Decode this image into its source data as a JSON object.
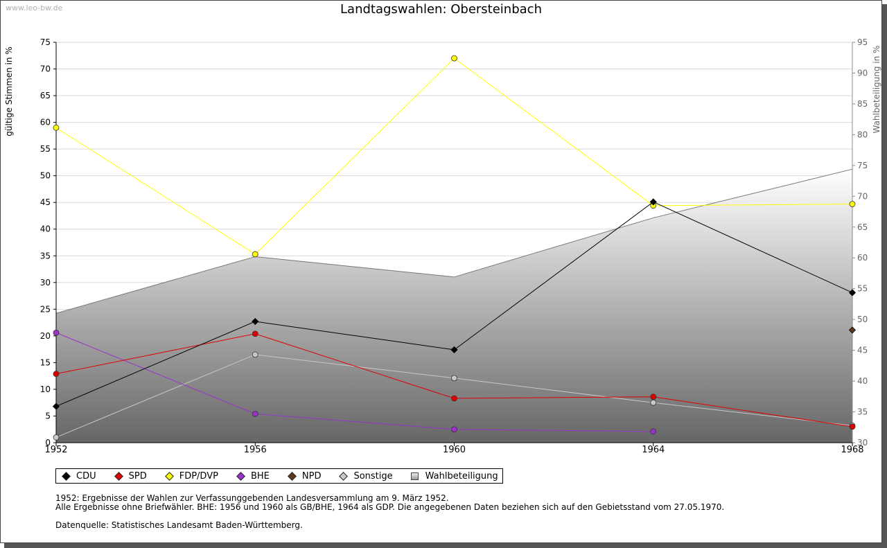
{
  "watermark": "www.leo-bw.de",
  "colors": {
    "CDU": "#000000",
    "SPD": "#e00000",
    "FDP_DVP": "#ffff00",
    "BHE": "#9933cc",
    "NPD": "#5c3a21",
    "Sonstige": "#c8c8c8",
    "Wahlbeteiligung_line": "#777777",
    "grid": "#d9d9d9"
  },
  "chart_data": {
    "type": "line",
    "title": "Landtagswahlen: Obersteinbach",
    "ylabel_left": "gültige Stimmen in %",
    "ylabel_right": "Wahlbeteiligung in %",
    "x": [
      "1952",
      "1956",
      "1960",
      "1964",
      "1968"
    ],
    "ylim_left": [
      0,
      75
    ],
    "ylim_right": [
      30,
      95
    ],
    "yticks_left": [
      "0",
      "5",
      "10",
      "15",
      "20",
      "25",
      "30",
      "35",
      "40",
      "45",
      "50",
      "55",
      "60",
      "65",
      "70",
      "75"
    ],
    "yticks_right": [
      "30",
      "35",
      "40",
      "45",
      "50",
      "55",
      "60",
      "65",
      "70",
      "75",
      "80",
      "85",
      "90",
      "95"
    ],
    "grid": true,
    "legend_position": "bottom-left",
    "series": [
      {
        "name": "CDU",
        "color_key": "CDU",
        "values": [
          6.8,
          22.7,
          17.4,
          45.1,
          28.1
        ]
      },
      {
        "name": "SPD",
        "color_key": "SPD",
        "values": [
          12.9,
          20.4,
          8.3,
          8.6,
          3.0
        ]
      },
      {
        "name": "FDP/DVP",
        "color_key": "FDP_DVP",
        "values": [
          59.0,
          35.3,
          72.0,
          44.4,
          44.7
        ]
      },
      {
        "name": "BHE",
        "color_key": "BHE",
        "values": [
          20.6,
          5.4,
          2.5,
          2.1,
          null
        ]
      },
      {
        "name": "NPD",
        "color_key": "NPD",
        "values": [
          null,
          null,
          null,
          null,
          21.1
        ]
      },
      {
        "name": "Sonstige",
        "color_key": "Sonstige",
        "values": [
          1.0,
          16.5,
          12.1,
          7.5,
          3.2
        ]
      },
      {
        "name": "Wahlbeteiligung",
        "axis": "right",
        "type": "area",
        "values": [
          51.0,
          60.2,
          56.9,
          66.5,
          74.4
        ]
      }
    ],
    "legend": [
      "CDU",
      "SPD",
      "FDP/DVP",
      "BHE",
      "NPD",
      "Sonstige",
      "Wahlbeteiligung"
    ],
    "notes": [
      "1952: Ergebnisse der Wahlen zur Verfassunggebenden Landesversammlung am 9. März 1952.",
      "Alle Ergebnisse ohne Briefwähler. BHE: 1956 und 1960 als GB/BHE, 1964 als GDP. Die angegebenen Daten beziehen sich auf den Gebietsstand vom 27.05.1970."
    ],
    "source": "Datenquelle: Statistisches Landesamt Baden-Württemberg."
  }
}
